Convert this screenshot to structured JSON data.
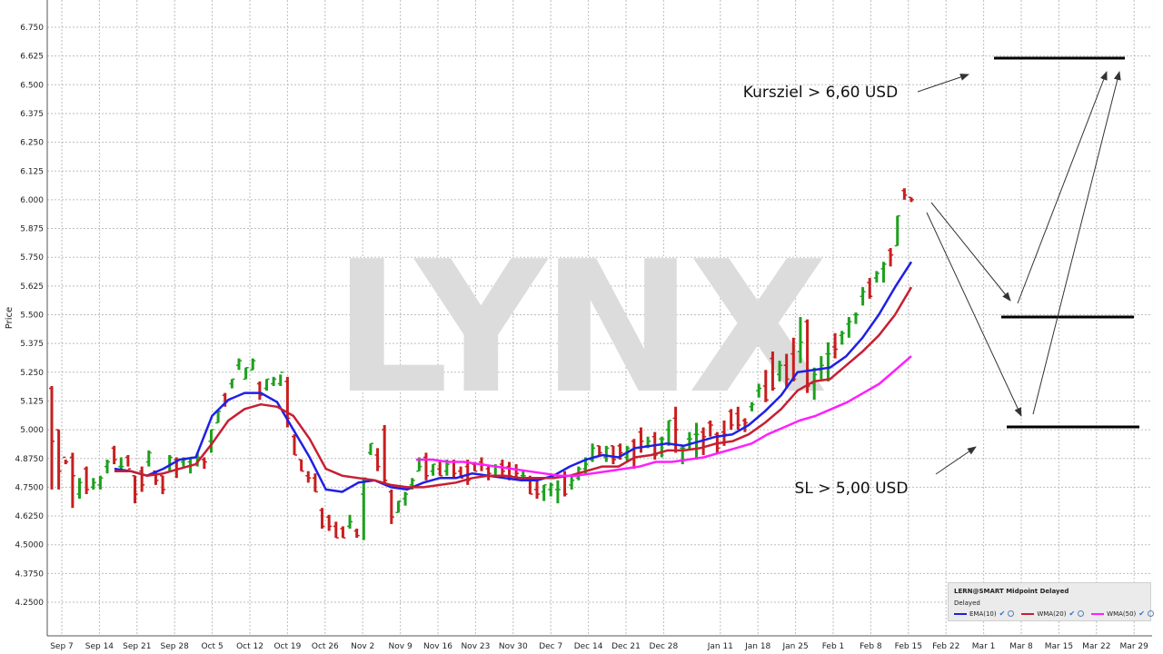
{
  "chart_data": {
    "type": "ohlc",
    "ylabel": "Price",
    "ylim": [
      4.125,
      6.8
    ],
    "y_ticks": [
      "4.2500",
      "4.3750",
      "4.5000",
      "4.6250",
      "4.7500",
      "4.8750",
      "5.000",
      "5.125",
      "5.250",
      "5.375",
      "5.500",
      "5.625",
      "5.750",
      "5.875",
      "6.000",
      "6.125",
      "6.250",
      "6.375",
      "6.500",
      "6.625",
      "6.750"
    ],
    "x_ticks": [
      "Sep 7",
      "Sep 14",
      "Sep 21",
      "Sep 28",
      "Oct 5",
      "Oct 12",
      "Oct 19",
      "Oct 26",
      "Nov 2",
      "Nov 9",
      "Nov 16",
      "Nov 23",
      "Nov 30",
      "Dec 7",
      "Dec 14",
      "Dec 21",
      "Dec 28",
      "Jan 11",
      "Jan 18",
      "Jan 25",
      "Feb 1",
      "Feb 8",
      "Feb 15",
      "Feb 22",
      "Mar 1",
      "Mar 8",
      "Mar 15",
      "Mar 22",
      "Mar 29"
    ],
    "candles": [
      [
        5.18,
        4.74,
        5.19,
        4.95
      ],
      [
        5.0,
        4.74,
        5.0,
        4.82
      ],
      [
        4.88,
        4.85,
        4.87,
        4.86
      ],
      [
        4.88,
        4.66,
        4.9,
        4.8
      ],
      [
        4.72,
        4.7,
        4.79,
        4.77
      ],
      [
        4.83,
        4.72,
        4.84,
        4.74
      ],
      [
        4.75,
        4.74,
        4.79,
        4.77
      ],
      [
        4.76,
        4.74,
        4.8,
        4.79
      ],
      [
        4.84,
        4.81,
        4.87,
        4.86
      ],
      [
        4.92,
        4.85,
        4.93,
        4.87
      ],
      [
        4.84,
        4.82,
        4.88,
        4.84
      ],
      [
        4.88,
        4.84,
        4.89,
        4.83
      ],
      [
        4.8,
        4.68,
        4.8,
        4.72
      ],
      [
        4.82,
        4.73,
        4.84,
        4.76
      ],
      [
        4.86,
        4.84,
        4.91,
        4.9
      ],
      [
        4.82,
        4.76,
        4.82,
        4.78
      ],
      [
        4.8,
        4.72,
        4.8,
        4.74
      ],
      [
        4.84,
        4.82,
        4.89,
        4.88
      ],
      [
        4.87,
        4.79,
        4.88,
        4.83
      ],
      [
        4.86,
        4.84,
        4.88,
        4.87
      ],
      [
        4.86,
        4.81,
        4.88,
        4.88
      ],
      [
        4.88,
        4.84,
        4.9,
        4.88
      ],
      [
        4.87,
        4.83,
        4.88,
        4.86
      ],
      [
        4.95,
        4.9,
        5.0,
        5.0
      ],
      [
        5.03,
        5.03,
        5.08,
        5.08
      ],
      [
        5.15,
        5.1,
        5.16,
        5.12
      ],
      [
        5.2,
        5.18,
        5.22,
        5.22
      ],
      [
        5.28,
        5.26,
        5.31,
        5.3
      ],
      [
        5.22,
        5.22,
        5.27,
        5.27
      ],
      [
        5.26,
        5.26,
        5.31,
        5.3
      ],
      [
        5.2,
        5.13,
        5.21,
        5.15
      ],
      [
        5.18,
        5.17,
        5.22,
        5.22
      ],
      [
        5.2,
        5.19,
        5.23,
        5.22
      ],
      [
        5.2,
        5.19,
        5.24,
        5.25
      ],
      [
        5.21,
        5.01,
        5.23,
        5.05
      ],
      [
        4.97,
        4.89,
        4.98,
        4.89
      ],
      [
        4.87,
        4.82,
        4.87,
        4.82
      ],
      [
        4.8,
        4.77,
        4.82,
        4.79
      ],
      [
        4.79,
        4.73,
        4.81,
        4.73
      ],
      [
        4.65,
        4.57,
        4.66,
        4.58
      ],
      [
        4.62,
        4.56,
        4.63,
        4.58
      ],
      [
        4.58,
        4.53,
        4.6,
        4.53
      ],
      [
        4.57,
        4.53,
        4.58,
        4.53
      ],
      [
        4.58,
        4.57,
        4.63,
        4.6
      ],
      [
        4.56,
        4.53,
        4.57,
        4.54
      ],
      [
        4.72,
        4.52,
        4.79,
        4.79
      ],
      [
        4.9,
        4.89,
        4.94,
        4.94
      ],
      [
        4.89,
        4.82,
        4.92,
        4.84
      ],
      [
        5.0,
        4.76,
        5.02,
        4.78
      ],
      [
        4.73,
        4.59,
        4.74,
        4.62
      ],
      [
        4.64,
        4.64,
        4.69,
        4.69
      ],
      [
        4.7,
        4.67,
        4.73,
        4.72
      ],
      [
        4.76,
        4.74,
        4.79,
        4.78
      ],
      [
        4.82,
        4.82,
        4.88,
        4.84
      ],
      [
        4.88,
        4.78,
        4.9,
        4.8
      ],
      [
        4.82,
        4.8,
        4.85,
        4.85
      ],
      [
        4.83,
        4.8,
        4.86,
        4.8
      ],
      [
        4.82,
        4.8,
        4.87,
        4.85
      ],
      [
        4.86,
        4.79,
        4.87,
        4.81
      ],
      [
        4.82,
        4.79,
        4.84,
        4.79
      ],
      [
        4.84,
        4.76,
        4.87,
        4.78
      ],
      [
        4.85,
        4.82,
        4.86,
        4.82
      ],
      [
        4.86,
        4.82,
        4.88,
        4.85
      ],
      [
        4.83,
        4.78,
        4.84,
        4.81
      ],
      [
        4.8,
        4.8,
        4.85,
        4.8
      ],
      [
        4.85,
        4.8,
        4.87,
        4.82
      ],
      [
        4.84,
        4.78,
        4.86,
        4.8
      ],
      [
        4.83,
        4.78,
        4.85,
        4.81
      ],
      [
        4.8,
        4.79,
        4.82,
        4.8
      ],
      [
        4.78,
        4.72,
        4.8,
        4.72
      ],
      [
        4.74,
        4.7,
        4.78,
        4.72
      ],
      [
        4.73,
        4.69,
        4.76,
        4.76
      ],
      [
        4.74,
        4.71,
        4.77,
        4.76
      ],
      [
        4.74,
        4.68,
        4.78,
        4.74
      ],
      [
        4.8,
        4.71,
        4.82,
        4.72
      ],
      [
        4.76,
        4.74,
        4.8,
        4.78
      ],
      [
        4.79,
        4.78,
        4.84,
        4.83
      ],
      [
        4.83,
        4.81,
        4.88,
        4.85
      ],
      [
        4.87,
        4.86,
        4.94,
        4.92
      ],
      [
        4.93,
        4.89,
        4.93,
        4.9
      ],
      [
        4.88,
        4.86,
        4.93,
        4.92
      ],
      [
        4.93,
        4.85,
        4.93,
        4.87
      ],
      [
        4.93,
        4.87,
        4.94,
        4.9
      ],
      [
        4.88,
        4.86,
        4.93,
        4.92
      ],
      [
        4.95,
        4.83,
        4.96,
        4.88
      ],
      [
        4.99,
        4.9,
        5.01,
        4.95
      ],
      [
        4.93,
        4.92,
        4.97,
        4.95
      ],
      [
        4.97,
        4.87,
        4.99,
        4.89
      ],
      [
        4.96,
        4.88,
        4.97,
        4.96
      ],
      [
        5.0,
        4.93,
        5.04,
        5.04
      ],
      [
        5.05,
        4.9,
        5.1,
        5.0
      ],
      [
        4.92,
        4.85,
        4.93,
        4.92
      ],
      [
        4.96,
        4.91,
        4.99,
        4.96
      ],
      [
        4.98,
        4.87,
        5.03,
        4.98
      ],
      [
        4.99,
        4.89,
        5.01,
        4.97
      ],
      [
        5.03,
        4.97,
        5.04,
        5.02
      ],
      [
        4.98,
        4.9,
        4.99,
        4.92
      ],
      [
        4.99,
        4.93,
        5.04,
        4.98
      ],
      [
        5.08,
        5.0,
        5.09,
        5.02
      ],
      [
        5.07,
        5.0,
        5.1,
        5.02
      ],
      [
        5.04,
        4.99,
        5.05,
        5.03
      ],
      [
        5.1,
        5.08,
        5.12,
        5.11
      ],
      [
        5.17,
        5.14,
        5.2,
        5.18
      ],
      [
        5.19,
        5.12,
        5.26,
        5.13
      ],
      [
        5.31,
        5.17,
        5.34,
        5.18
      ],
      [
        5.24,
        5.21,
        5.3,
        5.28
      ],
      [
        5.28,
        5.18,
        5.33,
        5.22
      ],
      [
        5.33,
        5.21,
        5.4,
        5.22
      ],
      [
        5.34,
        5.29,
        5.49,
        5.38
      ],
      [
        5.47,
        5.16,
        5.48,
        5.19
      ],
      [
        5.2,
        5.13,
        5.27,
        5.24
      ],
      [
        5.26,
        5.22,
        5.32,
        5.28
      ],
      [
        5.33,
        5.21,
        5.38,
        5.33
      ],
      [
        5.36,
        5.31,
        5.42,
        5.35
      ],
      [
        5.41,
        5.37,
        5.43,
        5.42
      ],
      [
        5.46,
        5.4,
        5.49,
        5.47
      ],
      [
        5.5,
        5.46,
        5.51,
        5.5
      ],
      [
        5.58,
        5.54,
        5.62,
        5.6
      ],
      [
        5.64,
        5.57,
        5.66,
        5.58
      ],
      [
        5.66,
        5.64,
        5.69,
        5.68
      ],
      [
        5.7,
        5.64,
        5.73,
        5.72
      ],
      [
        5.78,
        5.71,
        5.79,
        5.76
      ],
      [
        5.8,
        5.8,
        5.93,
        5.93
      ],
      [
        6.04,
        6.0,
        6.05,
        6.02
      ],
      [
        6.01,
        5.99,
        6.01,
        6.0
      ]
    ],
    "series": [
      {
        "name": "EMA(10)",
        "color": "#1f1fe6",
        "points": [
          [
            4.83,
            4.82
          ],
          [
            4.8,
            4.83
          ],
          [
            4.87,
            4.88
          ],
          [
            5.06,
            5.13
          ],
          [
            5.16,
            5.16
          ],
          [
            5.12,
            5.0
          ],
          [
            4.88,
            4.74
          ],
          [
            4.73,
            4.77
          ],
          [
            4.78,
            4.75
          ],
          [
            4.74,
            4.77
          ],
          [
            4.79,
            4.79
          ],
          [
            4.81,
            4.8
          ],
          [
            4.79,
            4.78
          ],
          [
            4.78,
            4.8
          ],
          [
            4.84,
            4.87
          ],
          [
            4.89,
            4.88
          ],
          [
            4.92,
            4.93
          ],
          [
            4.94,
            4.93
          ],
          [
            4.95,
            4.97
          ],
          [
            4.98,
            5.02
          ],
          [
            5.08,
            5.15
          ],
          [
            5.25,
            5.26
          ],
          [
            5.27,
            5.32
          ],
          [
            5.4,
            5.5
          ],
          [
            5.62,
            5.73
          ]
        ]
      },
      {
        "name": "WMA(20)",
        "color": "#c81e32",
        "points": [
          [
            4.82,
            4.82
          ],
          [
            4.8,
            4.81
          ],
          [
            4.83,
            4.85
          ],
          [
            4.94,
            5.04
          ],
          [
            5.09,
            5.11
          ],
          [
            5.1,
            5.06
          ],
          [
            4.96,
            4.83
          ],
          [
            4.8,
            4.79
          ],
          [
            4.78,
            4.76
          ],
          [
            4.75,
            4.75
          ],
          [
            4.76,
            4.77
          ],
          [
            4.79,
            4.8
          ],
          [
            4.8,
            4.79
          ],
          [
            4.79,
            4.79
          ],
          [
            4.8,
            4.82
          ],
          [
            4.84,
            4.84
          ],
          [
            4.88,
            4.89
          ],
          [
            4.91,
            4.91
          ],
          [
            4.92,
            4.94
          ],
          [
            4.95,
            4.98
          ],
          [
            5.03,
            5.09
          ],
          [
            5.17,
            5.21
          ],
          [
            5.22,
            5.28
          ],
          [
            5.34,
            5.41
          ],
          [
            5.5,
            5.62
          ]
        ]
      },
      {
        "name": "WMA(50)",
        "color": "#ff1eff",
        "points": [
          [
            4.87,
            4.87
          ],
          [
            4.86,
            4.86
          ],
          [
            4.85,
            4.84
          ],
          [
            4.83,
            4.82
          ],
          [
            4.81,
            4.8
          ],
          [
            4.8,
            4.81
          ],
          [
            4.82,
            4.83
          ],
          [
            4.84,
            4.86
          ],
          [
            4.86,
            4.87
          ],
          [
            4.88,
            4.9
          ],
          [
            4.92,
            4.94
          ],
          [
            4.98,
            5.01
          ],
          [
            5.04,
            5.06
          ],
          [
            5.09,
            5.12
          ],
          [
            5.16,
            5.2
          ],
          [
            5.26,
            5.32
          ]
        ]
      }
    ],
    "levels": [
      6.6,
      5.5,
      5.0
    ],
    "annotations": [
      "Kursziel > 6,60 USD",
      "SL > 5,00 USD"
    ],
    "watermark": "LYNX",
    "legend": {
      "title": "LERN@SMART Midpoint Delayed",
      "subtitle": "Delayed",
      "entries": [
        "EMA(10)",
        "WMA(20)",
        "WMA(50)"
      ]
    },
    "colors": {
      "up": "#1ea01e",
      "down": "#c81e1e",
      "grid": "#bdbdbd"
    }
  }
}
